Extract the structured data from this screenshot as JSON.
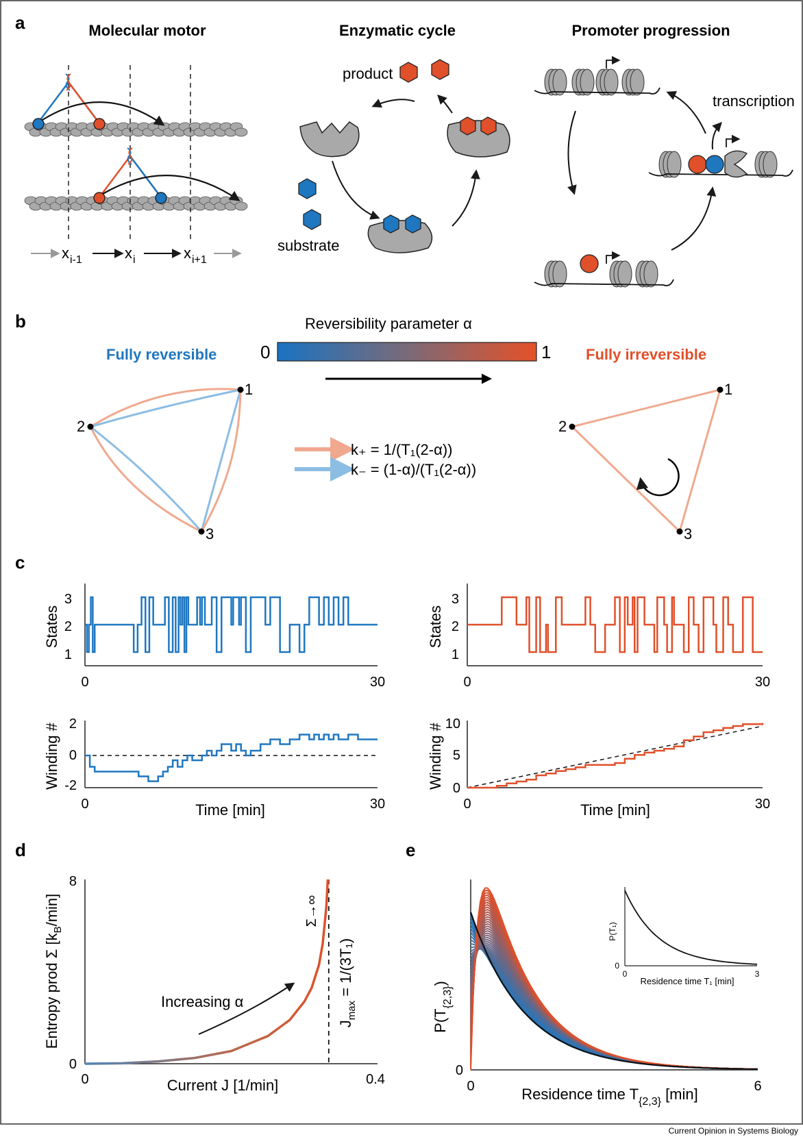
{
  "panels": {
    "a": {
      "label": "a",
      "titles": [
        "Molecular motor",
        "Enzymatic cycle",
        "Promoter progression"
      ],
      "motor_positions": [
        "x",
        "i-1",
        "x",
        "i",
        "x",
        "i+1"
      ],
      "product_label": "product",
      "substrate_label": "substrate",
      "transcription_label": "transcription"
    },
    "b": {
      "label": "b",
      "colorbar_title": "Reversibility parameter α",
      "colorbar_min": "0",
      "colorbar_max": "1",
      "left_title": "Fully reversible",
      "right_title": "Fully irreversible",
      "state_labels": [
        "1",
        "2",
        "3"
      ],
      "rate_plus": "k₊ = 1/(T₁(2-α))",
      "rate_minus": "k₋ = (1-α)/(T₁(2-α))",
      "colors": {
        "blue": "#1f77c0",
        "orange": "#e0502a",
        "light_blue": "#8cbde3",
        "light_orange": "#f0a98e"
      }
    },
    "c": {
      "label": "c",
      "states_ylabel": "States",
      "winding_ylabel": "Winding #",
      "xlabel": "Time [min]",
      "x_ticks": [
        "0",
        "30"
      ],
      "states_ticks": [
        "1",
        "2",
        "3"
      ],
      "left_winding_ticks": [
        "-2",
        "0",
        "2"
      ],
      "right_winding_ticks": [
        "0",
        "5",
        "10"
      ]
    },
    "d": {
      "label": "d",
      "ylabel": "Entropy prod Σ [k",
      "ylabel_sub": "B",
      "ylabel_end": "/min]",
      "xlabel": "Current J [1/min]",
      "x_ticks": [
        "0",
        "0.4"
      ],
      "y_ticks": [
        "0",
        "8"
      ],
      "arrow_label": "Increasing α",
      "sigma_label": "Σ→∞",
      "jmax_label": "J",
      "jmax_sub": "max",
      "jmax_end": " = 1/(3T₁)"
    },
    "e": {
      "label": "e",
      "ylabel": "P(T",
      "ylabel_sub": "{2,3}",
      "ylabel_end": ")",
      "xlabel": "Residence time T",
      "xlabel_sub": "{2,3}",
      "xlabel_end": " [min]",
      "x_ticks": [
        "0",
        "6"
      ],
      "y_ticks": [
        "0"
      ],
      "inset_ylabel": "P(T₁)",
      "inset_xlabel": "Residence time T₁ [min]",
      "inset_x_ticks": [
        "0",
        "3"
      ],
      "inset_y_ticks": [
        "0"
      ]
    }
  },
  "footer": "Current Opinion in Systems Biology",
  "chart_data": [
    {
      "type": "line",
      "panel": "c-left-states",
      "ylabel": "States",
      "xlabel": "",
      "xlim": [
        0,
        30
      ],
      "ylim": [
        1,
        3
      ],
      "series": [
        {
          "color": "#1f77c0",
          "t": [
            0,
            0.2,
            0.4,
            0.6,
            0.8,
            1,
            5,
            5.4,
            5.8,
            6.2,
            6.6,
            7,
            7.4,
            8.2,
            8.6,
            9,
            9.3,
            9.6,
            9.8,
            10,
            10.2,
            10.4,
            10.6,
            11.5,
            11.8,
            12,
            12.3,
            13,
            13.5,
            14,
            15,
            15.2,
            15.8,
            16,
            16.5,
            17,
            18.5,
            19,
            20,
            21,
            22,
            22.5,
            23,
            24,
            24.5,
            25,
            25.5,
            26,
            26.5,
            27,
            28,
            30
          ],
          "s": [
            2,
            1,
            2,
            3,
            1,
            2,
            1,
            2,
            3,
            1,
            3,
            2,
            2,
            3,
            1,
            3,
            1,
            3,
            2,
            3,
            1,
            3,
            2,
            3,
            2,
            3,
            2,
            3,
            1,
            3,
            2,
            3,
            2,
            3,
            1,
            3,
            2,
            3,
            1,
            2,
            1,
            2,
            3,
            2,
            3,
            2,
            3,
            2,
            3,
            2,
            2,
            2
          ]
        }
      ]
    },
    {
      "type": "line",
      "panel": "c-left-winding",
      "ylabel": "Winding #",
      "xlabel": "Time [min]",
      "xlim": [
        0,
        30
      ],
      "ylim": [
        -2,
        2
      ],
      "series": [
        {
          "color": "#1f77c0",
          "t": [
            0,
            0.5,
            1,
            5,
            5.5,
            6,
            6.5,
            7,
            7.5,
            8,
            8.5,
            9,
            9.5,
            10,
            10.5,
            11,
            12,
            12.5,
            13,
            13.5,
            14,
            15,
            15.5,
            16,
            16.5,
            17,
            18,
            19,
            20,
            21,
            22,
            23,
            23.5,
            24,
            24.5,
            25,
            25.5,
            26,
            27,
            28,
            30
          ],
          "w": [
            0,
            -0.7,
            -1,
            -1,
            -1.3,
            -1.3,
            -1.6,
            -1.6,
            -1.3,
            -1,
            -0.7,
            -0.3,
            -0.7,
            -0.3,
            0,
            -0.3,
            0,
            0.3,
            0,
            0.3,
            0.7,
            0.3,
            0.7,
            0.3,
            0,
            0.3,
            0.7,
            1,
            0.7,
            1,
            1.3,
            1,
            1.3,
            1,
            1.3,
            1,
            1.3,
            1,
            1.3,
            1,
            1
          ]
        }
      ]
    },
    {
      "type": "line",
      "panel": "c-right-states",
      "ylabel": "States",
      "xlabel": "",
      "xlim": [
        0,
        30
      ],
      "ylim": [
        1,
        3
      ],
      "series": [
        {
          "color": "#e0502a",
          "t": [
            0,
            3,
            3.5,
            5,
            6,
            6.3,
            7,
            7.4,
            8,
            8.2,
            9,
            9.6,
            12,
            12.5,
            13,
            14,
            15,
            15.5,
            16,
            16.3,
            16.8,
            17,
            17.3,
            18,
            19,
            19.3,
            20,
            20.3,
            20.8,
            21,
            22,
            22.5,
            23,
            23.5,
            24,
            25,
            25.3,
            26,
            26.5,
            27,
            28,
            29,
            30
          ],
          "s": [
            2,
            2,
            3,
            2,
            3,
            1,
            3,
            1,
            2,
            1,
            3,
            2,
            3,
            2,
            1,
            2,
            3,
            1,
            3,
            2,
            3,
            1,
            3,
            2,
            1,
            3,
            2,
            1,
            3,
            2,
            1,
            3,
            2,
            1,
            3,
            2,
            1,
            3,
            2,
            1,
            3,
            1,
            1
          ]
        }
      ]
    },
    {
      "type": "line",
      "panel": "c-right-winding",
      "ylabel": "Winding #",
      "xlabel": "Time [min]",
      "xlim": [
        0,
        30
      ],
      "ylim": [
        0,
        10
      ],
      "series": [
        {
          "color": "#e0502a",
          "t": [
            0,
            2,
            3,
            4,
            5,
            6,
            7,
            8,
            9,
            10,
            11,
            12,
            13,
            14,
            15,
            16,
            17,
            18,
            19,
            20,
            21,
            22,
            23,
            24,
            25,
            26,
            27,
            28,
            29,
            30
          ],
          "w": [
            0,
            0,
            0.3,
            0.7,
            1,
            1.3,
            2,
            2.3,
            2.7,
            3,
            3.3,
            3.7,
            3.7,
            3.7,
            4,
            4.7,
            5.3,
            5.7,
            6,
            6.3,
            6.7,
            7.7,
            8.3,
            9,
            9.3,
            9.7,
            10,
            10.3,
            10.3,
            10.5
          ]
        },
        {
          "name": "",
          "style": "dashed",
          "t": [
            0,
            30
          ],
          "w": [
            0,
            10
          ]
        }
      ]
    },
    {
      "type": "line",
      "panel": "d",
      "xlabel": "Current J [1/min]",
      "ylabel": "Entropy prod Σ [kB/min]",
      "xlim": [
        0,
        0.4
      ],
      "ylim": [
        0,
        8
      ],
      "jmax": 0.3333,
      "series": [
        {
          "name": "",
          "x": [
            0,
            0.05,
            0.1,
            0.15,
            0.2,
            0.25,
            0.28,
            0.3,
            0.31,
            0.32,
            0.325,
            0.33,
            0.332
          ],
          "y": [
            0,
            0.02,
            0.1,
            0.25,
            0.55,
            1.2,
            1.9,
            2.7,
            3.3,
            4.3,
            5.2,
            6.8,
            8
          ]
        }
      ]
    },
    {
      "type": "line",
      "panel": "e",
      "xlabel": "Residence time T{2,3} [min]",
      "ylabel": "P(T{2,3})",
      "xlim": [
        0,
        6
      ],
      "note_alpha_range": [
        0,
        1
      ]
    }
  ]
}
